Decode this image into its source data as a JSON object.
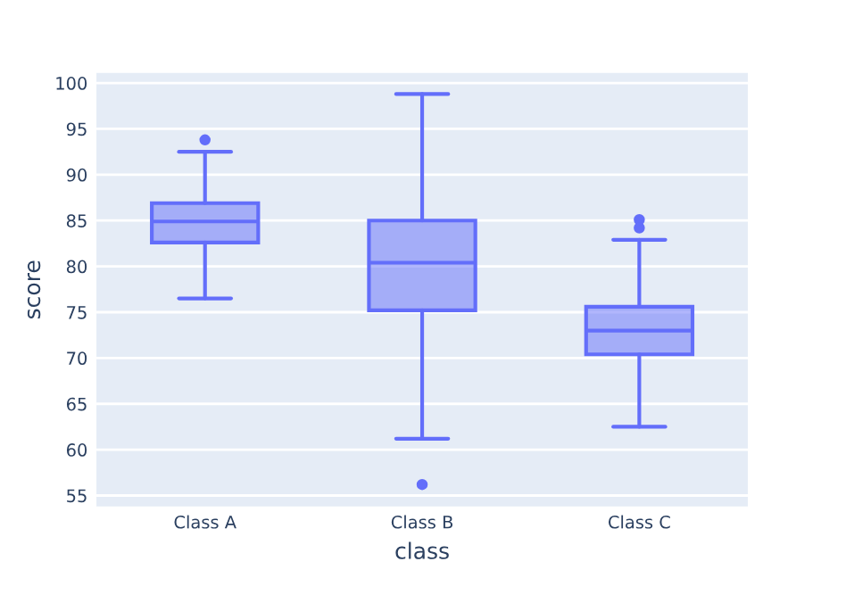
{
  "chart_data": {
    "type": "box",
    "xlabel": "class",
    "ylabel": "score",
    "categories": [
      "Class A",
      "Class B",
      "Class C"
    ],
    "ylim": [
      53.8,
      101.1
    ],
    "yticks": [
      55,
      60,
      65,
      70,
      75,
      80,
      85,
      90,
      95,
      100
    ],
    "grid": "y",
    "series": [
      {
        "color": "#636efa",
        "boxes": [
          {
            "low": 76.5,
            "q1": 82.6,
            "median": 84.9,
            "q3": 86.9,
            "high": 92.5,
            "outliers": [
              93.8
            ]
          },
          {
            "low": 61.2,
            "q1": 75.2,
            "median": 80.4,
            "q3": 85.0,
            "high": 98.8,
            "outliers": [
              56.2
            ]
          },
          {
            "low": 62.5,
            "q1": 70.4,
            "median": 73.0,
            "q3": 75.6,
            "high": 82.9,
            "outliers": [
              85.1,
              84.2
            ]
          }
        ]
      }
    ]
  }
}
